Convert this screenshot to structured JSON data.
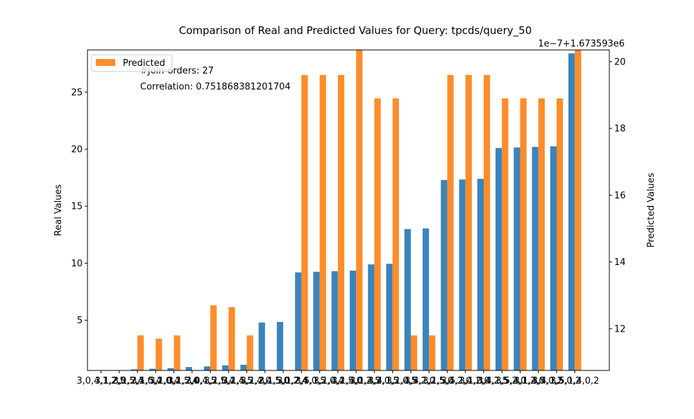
{
  "chart_data": {
    "type": "bar",
    "title": "Comparison of Real and Predicted Values for Query: tpcds/query_50",
    "ylabel": "Real Values",
    "y2label": "Predicted Values",
    "y2_offset_text": "1e−7+1.673593e6",
    "ylim": [
      0.6,
      28.7
    ],
    "y2lim": [
      10.75,
      20.35
    ],
    "y_ticks": [
      5,
      10,
      15,
      20,
      25
    ],
    "y2_ticks": [
      12,
      14,
      16,
      18,
      20
    ],
    "legend": {
      "position": "top-left",
      "entries": [
        "Predicted"
      ]
    },
    "annotations": [
      "#Join-orders: 27",
      "Correlation: 0.751868381201704"
    ],
    "colors": {
      "real": "#3a84bd",
      "predicted": "#ff8c2b"
    },
    "categories": [
      "3,0,4,1,2,5",
      "3,1,2,0,5,4",
      "3,1,2,5,0,4",
      "3,1,5,2,0,4",
      "3,1,0,2,5,4",
      "3,1,2,0,4,5",
      "3,0,1,2,5,4",
      "3,1,0,2,4,5",
      "3,1,5,2,4,0",
      "3,1,2,4,5,0",
      "3,1,5,0,2,4",
      "3,1,2,4,0,5",
      "3,5,1,2,0,4",
      "3,1,4,2,5,0",
      "3,1,4,0,2,5",
      "3,1,4,2,0,5",
      "3,4,1,2,0,5",
      "3,1,4,5,2,0",
      "3,4,1,2,5,0",
      "3,1,5,4,2,0",
      "3,5,1,4,2,0",
      "3,1,0,4,2,5",
      "3,4,1,5,2,0",
      "3,5,4,1,2,0",
      "3,1,4,5,0,2",
      "3,4,1,5,0,2",
      "3,5,1,4,0,2"
    ],
    "x_tick_labels": [
      "3,0,4,1,2,5",
      "3,1,2,0,5,4",
      "3,1,2,5,0,4",
      "3,1,5,2,0,4",
      "3,1,0,2,5,4",
      "3,1,2,0,4,5",
      "3,0,1,2,5,4",
      "3,1,0,2,4,5",
      "3,1,5,2,4,0",
      "3,1,2,4,5,0",
      "3,1,5,0,2,4",
      "3,1,2,4,0,5",
      "3,5,1,2,0,4",
      "3,1,4,2,5,0",
      "3,1,4,0,2,5",
      "3,1,4,2,0,5",
      "3,4,1,2,0,5",
      "3,1,4,5,2,0",
      "3,4,1,2,5,0",
      "3,1,5,4,2,0",
      "3,5,1,4,2,0",
      "3,1,0,4,2,5",
      "3,4,1,5,2,0",
      "3,5,4,1,2,0",
      "3,1,4,5,0,2",
      "3,4,1,5,0,2",
      "3,5,1,4,0,2"
    ],
    "series": [
      {
        "axis": "left",
        "values": [
          0.3,
          0.5,
          0.7,
          0.75,
          0.8,
          0.9,
          0.95,
          1.05,
          1.1,
          4.8,
          4.85,
          9.2,
          9.25,
          9.3,
          9.35,
          9.9,
          9.95,
          13.0,
          13.05,
          17.3,
          17.35,
          17.4,
          20.1,
          20.15,
          20.2,
          20.25,
          28.4
        ]
      },
      {
        "name": "Predicted",
        "axis": "right",
        "values": [
          10.2,
          10.5,
          11.8,
          11.7,
          11.8,
          10.3,
          12.7,
          12.65,
          11.8,
          10.6,
          10.4,
          19.6,
          19.6,
          19.6,
          20.8,
          18.9,
          18.9,
          11.8,
          11.8,
          19.6,
          19.6,
          19.6,
          18.9,
          18.9,
          18.9,
          18.9,
          21.0
        ]
      }
    ]
  }
}
